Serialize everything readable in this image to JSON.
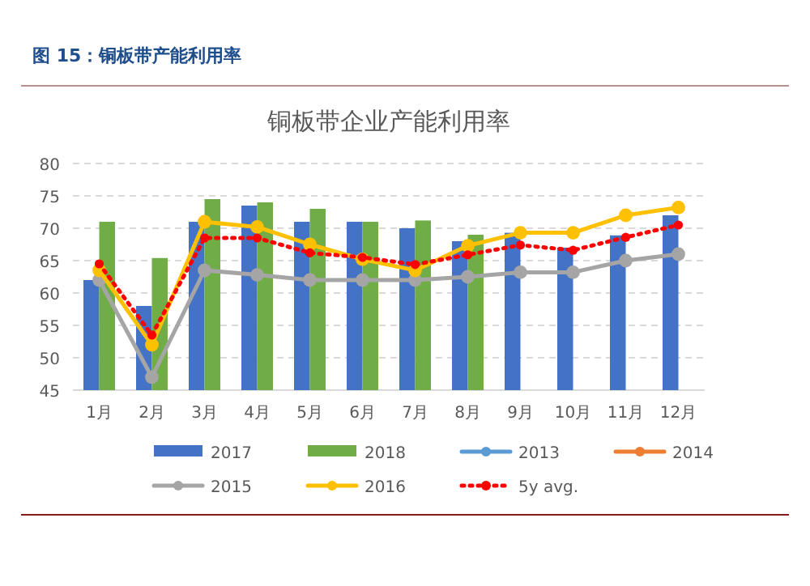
{
  "chart_data": {
    "type": "bar",
    "title": "图 15：铜板带产能利用率",
    "subtitle": "铜板带企业产能利用率",
    "categories": [
      "1月",
      "2月",
      "3月",
      "4月",
      "5月",
      "6月",
      "7月",
      "8月",
      "9月",
      "10月",
      "11月",
      "12月"
    ],
    "ylim": [
      45,
      80
    ],
    "yticks": [
      45,
      50,
      55,
      60,
      65,
      70,
      75,
      80
    ],
    "grid": "y",
    "legend": "bottom",
    "marker": "circle",
    "series": [
      {
        "name": "2017",
        "color": "#4472c4",
        "values": [
          62,
          58,
          71,
          73.5,
          71,
          71,
          70,
          68,
          69.3,
          67,
          68.9,
          72
        ]
      },
      {
        "name": "2018",
        "color": "#70ad47",
        "values": [
          71,
          65.4,
          74.5,
          74,
          73,
          71,
          71.2,
          69,
          null,
          null,
          null,
          null
        ]
      },
      {
        "name": "2013",
        "type": "line",
        "color": "#5b9bd5",
        "values": [
          null,
          null,
          null,
          null,
          null,
          null,
          null,
          null,
          null,
          null,
          null,
          null
        ]
      },
      {
        "name": "2014",
        "type": "line",
        "color": "#ed7d31",
        "values": [
          null,
          null,
          null,
          null,
          null,
          null,
          null,
          null,
          null,
          null,
          null,
          null
        ]
      },
      {
        "name": "2015",
        "type": "line",
        "color": "#a5a5a5",
        "values": [
          62,
          47,
          63.5,
          62.8,
          62,
          62,
          62,
          62.5,
          63.2,
          63.2,
          65,
          66
        ]
      },
      {
        "name": "2016",
        "type": "line",
        "color": "#ffc000",
        "values": [
          63.5,
          52,
          71,
          70.2,
          67.5,
          65.2,
          63.5,
          67.3,
          69.3,
          69.3,
          72,
          73.2
        ]
      },
      {
        "name": "5y avg.",
        "type": "line",
        "color": "#ff0000",
        "line_style": "dotted",
        "values": [
          64.5,
          53.5,
          68.5,
          68.5,
          66.2,
          65.5,
          64.4,
          65.9,
          67.4,
          66.6,
          68.6,
          70.5
        ]
      }
    ]
  }
}
